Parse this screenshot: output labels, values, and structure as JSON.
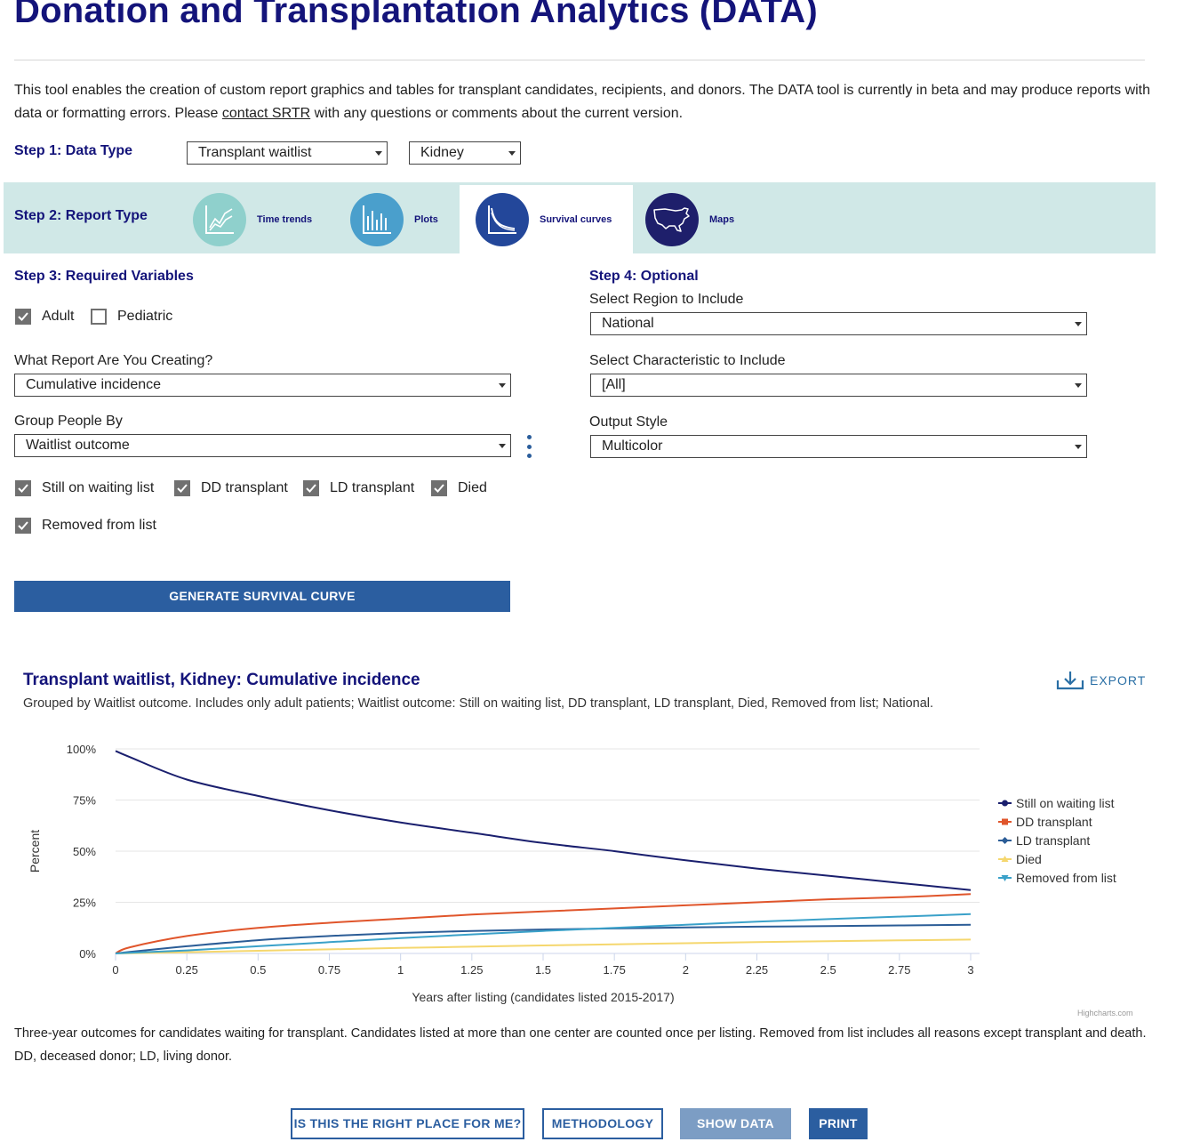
{
  "header": {
    "title": "Donation and Transplantation Analytics (DATA)",
    "intro_before_link": "This tool enables the creation of custom report graphics and tables for transplant candidates, recipients, and donors. The DATA tool is currently in beta and may produce reports with data or formatting errors. Please ",
    "intro_link": "contact SRTR",
    "intro_after_link": " with any questions or comments about the current version."
  },
  "step1": {
    "label": "Step 1: Data Type",
    "data_type": "Transplant waitlist",
    "organ": "Kidney"
  },
  "step2": {
    "label": "Step 2: Report Type",
    "tabs": [
      {
        "label": "Time trends",
        "icon": "line-chart-icon",
        "color": "#8fd0cc"
      },
      {
        "label": "Plots",
        "icon": "bar-chart-icon",
        "color": "#4a9fcc"
      },
      {
        "label": "Survival curves",
        "icon": "survival-curve-icon",
        "color": "#23479a"
      },
      {
        "label": "Maps",
        "icon": "us-map-icon",
        "color": "#1e1f6b"
      }
    ],
    "active_tab": "Survival curves"
  },
  "step3": {
    "label": "Step 3: Required Variables",
    "adult_label": "Adult",
    "pediatric_label": "Pediatric",
    "report_label": "What Report Are You Creating?",
    "report_value": "Cumulative incidence",
    "group_label": "Group People By",
    "group_value": "Waitlist outcome",
    "outcomes": {
      "still": "Still on waiting list",
      "dd": "DD transplant",
      "ld": "LD transplant",
      "died": "Died",
      "removed": "Removed from list"
    },
    "generate_label": "GENERATE SURVIVAL CURVE"
  },
  "step4": {
    "label": "Step 4: Optional",
    "region_label": "Select Region to Include",
    "region_value": "National",
    "characteristic_label": "Select Characteristic to Include",
    "characteristic_value": "[All]",
    "output_label": "Output Style",
    "output_value": "Multicolor"
  },
  "chart": {
    "export_label": "EXPORT",
    "credits": "Highcharts.com",
    "footnote": "Three-year outcomes for candidates waiting for transplant. Candidates listed at more than one center are counted once per listing. Removed from list includes all reasons except transplant and death. DD, deceased donor; LD, living donor."
  },
  "chart_data": {
    "type": "line",
    "title": "Transplant waitlist, Kidney: Cumulative incidence",
    "subtitle": "Grouped by Waitlist outcome. Includes only adult patients; Waitlist outcome: Still on waiting list, DD transplant, LD transplant, Died, Removed from list; National.",
    "xlabel": "Years after listing (candidates listed 2015-2017)",
    "ylabel": "Percent",
    "xlim": [
      0,
      3
    ],
    "ylim": [
      0,
      100
    ],
    "x_ticks": [
      "0",
      "0.25",
      "0.5",
      "0.75",
      "1",
      "1.25",
      "1.5",
      "1.75",
      "2",
      "2.25",
      "2.5",
      "2.75",
      "3"
    ],
    "y_ticks": [
      "0%",
      "25%",
      "50%",
      "75%",
      "100%"
    ],
    "grid": true,
    "legend_position": "right",
    "x": [
      0,
      0.05,
      0.25,
      0.5,
      0.75,
      1,
      1.25,
      1.5,
      1.75,
      2,
      2.25,
      2.5,
      2.75,
      3
    ],
    "series": [
      {
        "name": "Still on waiting list",
        "color": "#1a1f6e",
        "marker": "circle",
        "values": [
          99,
          96,
          85,
          77,
          70,
          64,
          59,
          54,
          50,
          45.5,
          41.5,
          38,
          34.5,
          31
        ]
      },
      {
        "name": "DD transplant",
        "color": "#e0552b",
        "marker": "square",
        "values": [
          0,
          3,
          8.5,
          12.5,
          15,
          17,
          19,
          20.5,
          22,
          23.5,
          25,
          26.5,
          27.5,
          29
        ]
      },
      {
        "name": "LD transplant",
        "color": "#2b5c96",
        "marker": "diamond",
        "values": [
          0,
          0.8,
          3.5,
          6.5,
          8.5,
          10,
          11,
          11.7,
          12.2,
          12.7,
          13.1,
          13.4,
          13.7,
          14
        ]
      },
      {
        "name": "Died",
        "color": "#f5d76e",
        "marker": "triangle",
        "values": [
          0,
          0.1,
          0.6,
          1.3,
          2,
          2.7,
          3.3,
          3.9,
          4.5,
          5,
          5.5,
          6,
          6.4,
          6.8
        ]
      },
      {
        "name": "Removed from list",
        "color": "#3aa1c9",
        "marker": "triangle-down",
        "values": [
          0,
          0.3,
          1.5,
          3.5,
          5.5,
          7.5,
          9.3,
          11,
          12.5,
          14,
          15.5,
          16.8,
          18,
          19.2
        ]
      }
    ]
  },
  "footer": {
    "right_place": "IS THIS THE RIGHT PLACE FOR ME?",
    "methodology": "METHODOLOGY",
    "show_data": "SHOW DATA",
    "print": "PRINT"
  }
}
